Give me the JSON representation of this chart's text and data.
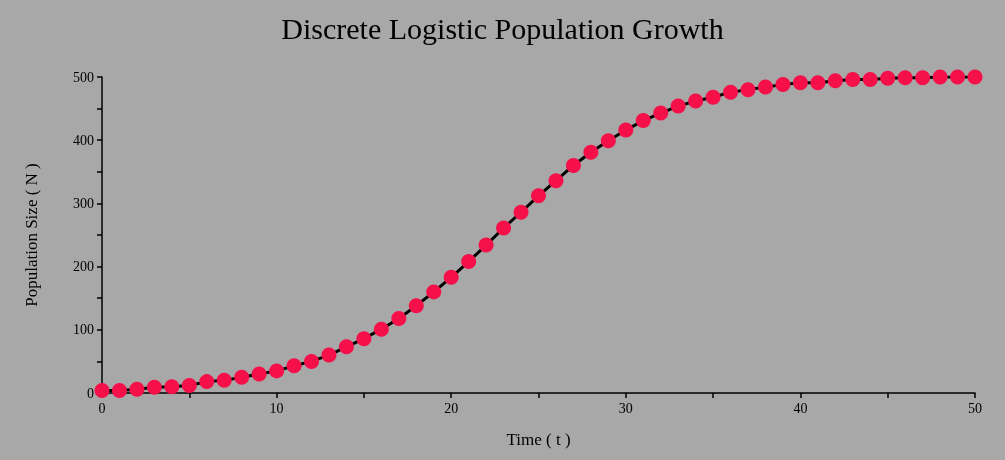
{
  "chart_data": {
    "type": "line",
    "title": "Discrete Logistic Population Growth",
    "xlabel": "Time ( t )",
    "ylabel": "Population Size ( N )",
    "x": [
      0,
      1,
      2,
      3,
      4,
      5,
      6,
      7,
      8,
      9,
      10,
      11,
      12,
      13,
      14,
      15,
      16,
      17,
      18,
      19,
      20,
      21,
      22,
      23,
      24,
      25,
      26,
      27,
      28,
      29,
      30,
      31,
      32,
      33,
      34,
      35,
      36,
      37,
      38,
      39,
      40,
      41,
      42,
      43,
      44,
      45,
      46,
      47,
      48,
      49,
      50
    ],
    "series": [
      {
        "color": "#f5104a",
        "values": [
          4,
          4,
          6,
          9,
          10,
          12,
          18,
          20,
          25,
          30,
          35,
          43,
          50,
          60,
          73,
          86,
          101,
          118,
          138,
          160,
          183,
          208,
          234,
          261,
          286,
          312,
          336,
          360,
          381,
          399,
          416,
          431,
          443,
          454,
          462,
          468,
          476,
          480,
          484,
          488,
          491,
          491,
          494,
          496,
          496,
          498,
          499,
          499,
          500,
          500,
          500
        ]
      }
    ],
    "marker": "circle",
    "grid": false,
    "xlim": [
      0,
      50
    ],
    "xticks": [
      0,
      {
        "value": 5,
        "label": null
      },
      10,
      {
        "value": 15,
        "label": null
      },
      20,
      {
        "value": 25,
        "label": null
      },
      30,
      {
        "value": 35,
        "label": null
      },
      40,
      {
        "value": 45,
        "label": null
      },
      50
    ],
    "ylim": [
      0,
      500
    ],
    "yticks": [
      0,
      {
        "value": 50,
        "label": null
      },
      100,
      {
        "value": 150,
        "label": null
      },
      200,
      {
        "value": 250,
        "label": null
      },
      300,
      {
        "value": 350,
        "label": null
      },
      400,
      {
        "value": 450,
        "label": null
      },
      500
    ]
  }
}
